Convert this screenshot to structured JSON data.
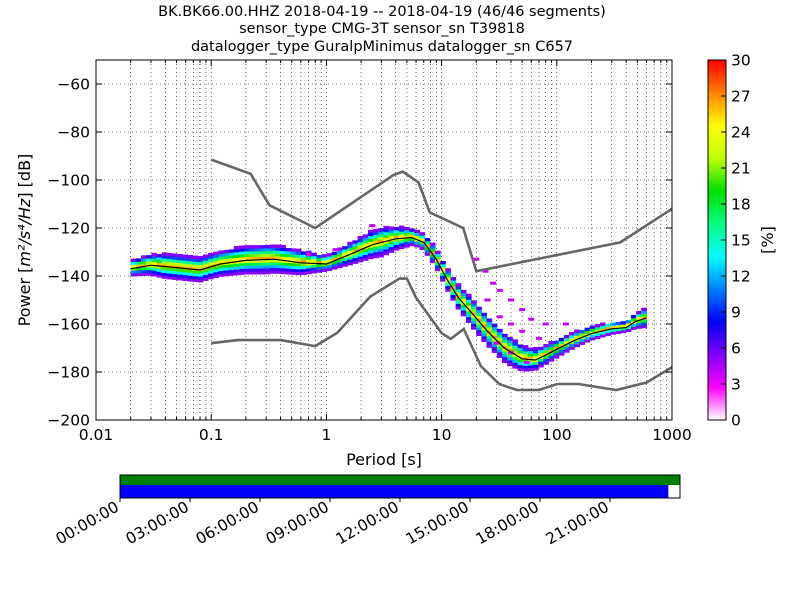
{
  "chart_data": {
    "type": "heatmap",
    "title_lines": [
      "BK.BK66.00.HHZ   2018-04-19 -- 2018-04-19  (46/46 segments)",
      "sensor_type CMG-3T sensor_sn T39818",
      "datalogger_type GuralpMinimus datalogger_sn C657"
    ],
    "xlabel": "Period [s]",
    "ylabel_text": "Power [",
    "ylabel_math": "m²/s⁴/Hz",
    "ylabel_unit": "] [dB]",
    "xscale": "log",
    "xlim": [
      0.01,
      1000
    ],
    "ylim": [
      -200,
      -50
    ],
    "grid": "dotted",
    "x_ticks": [
      {
        "value": 0.01,
        "label": "0.01"
      },
      {
        "value": 0.1,
        "label": "0.1"
      },
      {
        "value": 1,
        "label": "1"
      },
      {
        "value": 10,
        "label": "10"
      },
      {
        "value": 100,
        "label": "100"
      },
      {
        "value": 1000,
        "label": "1000"
      }
    ],
    "y_ticks": [
      {
        "value": -60,
        "label": "−60"
      },
      {
        "value": -80,
        "label": "−80"
      },
      {
        "value": -100,
        "label": "−100"
      },
      {
        "value": -120,
        "label": "−120"
      },
      {
        "value": -140,
        "label": "−140"
      },
      {
        "value": -160,
        "label": "−160"
      },
      {
        "value": -180,
        "label": "−180"
      },
      {
        "value": -200,
        "label": "−200"
      }
    ],
    "colorbar": {
      "label": "[%]",
      "range": [
        0,
        30
      ],
      "ticks": [
        {
          "value": 0,
          "label": "0"
        },
        {
          "value": 3,
          "label": "3"
        },
        {
          "value": 6,
          "label": "6"
        },
        {
          "value": 9,
          "label": "9"
        },
        {
          "value": 12,
          "label": "12"
        },
        {
          "value": 15,
          "label": "15"
        },
        {
          "value": 18,
          "label": "18"
        },
        {
          "value": 21,
          "label": "21"
        },
        {
          "value": 24,
          "label": "24"
        },
        {
          "value": 27,
          "label": "27"
        },
        {
          "value": 30,
          "label": "30"
        }
      ],
      "colors": [
        "#ffffff",
        "#ff00ff",
        "#8000ff",
        "#0000ff",
        "#0080ff",
        "#00ffff",
        "#00ff80",
        "#00e000",
        "#c0ff00",
        "#ffff00",
        "#ff8000",
        "#ff0000"
      ]
    },
    "noise_models": {
      "nhnm": [
        [
          0.1,
          -91.5
        ],
        [
          0.22,
          -97.4
        ],
        [
          0.32,
          -110.5
        ],
        [
          0.8,
          -120
        ],
        [
          3.8,
          -98
        ],
        [
          4.6,
          -96.5
        ],
        [
          6.3,
          -101
        ],
        [
          7.9,
          -113.5
        ],
        [
          15.4,
          -120
        ],
        [
          20,
          -138
        ],
        [
          354.8,
          -126
        ],
        [
          1000,
          -112
        ]
      ],
      "nlnm": [
        [
          0.1,
          -168
        ],
        [
          0.17,
          -166.7
        ],
        [
          0.4,
          -166.7
        ],
        [
          0.8,
          -169.2
        ],
        [
          1.24,
          -163.7
        ],
        [
          2.4,
          -148.6
        ],
        [
          4.3,
          -141.1
        ],
        [
          5,
          -141.1
        ],
        [
          6,
          -149
        ],
        [
          10,
          -163.8
        ],
        [
          12,
          -166.2
        ],
        [
          15.6,
          -162.1
        ],
        [
          21.9,
          -177.5
        ],
        [
          31.6,
          -185
        ],
        [
          45,
          -187.5
        ],
        [
          70,
          -187.5
        ],
        [
          101,
          -185
        ],
        [
          154,
          -185
        ],
        [
          328,
          -187.5
        ],
        [
          600,
          -184.4
        ],
        [
          1000,
          -178
        ]
      ]
    },
    "psd_median": [
      [
        0.02,
        -137
      ],
      [
        0.03,
        -135.5
      ],
      [
        0.05,
        -136.5
      ],
      [
        0.08,
        -137.5
      ],
      [
        0.12,
        -135
      ],
      [
        0.2,
        -133.5
      ],
      [
        0.35,
        -133
      ],
      [
        0.6,
        -134.5
      ],
      [
        1,
        -135
      ],
      [
        1.6,
        -131
      ],
      [
        2.5,
        -127
      ],
      [
        4,
        -124.5
      ],
      [
        5.5,
        -124
      ],
      [
        7,
        -126
      ],
      [
        9,
        -133
      ],
      [
        11,
        -141
      ],
      [
        14,
        -149
      ],
      [
        18,
        -155
      ],
      [
        25,
        -163
      ],
      [
        35,
        -170
      ],
      [
        50,
        -174.5
      ],
      [
        65,
        -175
      ],
      [
        80,
        -173
      ],
      [
        100,
        -170.5
      ],
      [
        140,
        -167
      ],
      [
        200,
        -164
      ],
      [
        300,
        -162
      ],
      [
        400,
        -161.5
      ],
      [
        480,
        -159
      ],
      [
        600,
        -157.5
      ]
    ],
    "psd_spread_db": [
      [
        0.02,
        3
      ],
      [
        0.04,
        5
      ],
      [
        0.1,
        5
      ],
      [
        0.3,
        6
      ],
      [
        0.6,
        5
      ],
      [
        1,
        3
      ],
      [
        2,
        5
      ],
      [
        3,
        6
      ],
      [
        6,
        3
      ],
      [
        10,
        4
      ],
      [
        20,
        6
      ],
      [
        40,
        6
      ],
      [
        70,
        4
      ],
      [
        150,
        3
      ],
      [
        400,
        2
      ],
      [
        600,
        4
      ]
    ],
    "psd_outliers": [
      [
        20,
        -133
      ],
      [
        24,
        -138
      ],
      [
        28,
        -143
      ],
      [
        32,
        -146
      ],
      [
        40,
        -150
      ],
      [
        50,
        -154
      ],
      [
        60,
        -158
      ],
      [
        80,
        -160
      ],
      [
        120,
        -160
      ],
      [
        25,
        -150
      ],
      [
        32,
        -157
      ],
      [
        40,
        -160
      ],
      [
        50,
        -163
      ],
      [
        70,
        -166
      ],
      [
        30,
        -168
      ],
      [
        40,
        -172
      ],
      [
        55,
        -176
      ],
      [
        0.7,
        -131
      ],
      [
        1.2,
        -129
      ],
      [
        2.5,
        -119
      ]
    ],
    "time_axis": {
      "labels": [
        "00:00:00",
        "03:00:00",
        "06:00:00",
        "09:00:00",
        "12:00:00",
        "15:00:00",
        "18:00:00",
        "21:00:00"
      ],
      "hours": [
        0,
        3,
        6,
        9,
        12,
        15,
        18,
        21
      ],
      "range_hours": [
        0,
        24
      ],
      "green_bar_hours": [
        0,
        24
      ],
      "blue_bar_hours": [
        0,
        23.5
      ],
      "green_color": "#008000",
      "blue_color": "#0000ff"
    }
  }
}
